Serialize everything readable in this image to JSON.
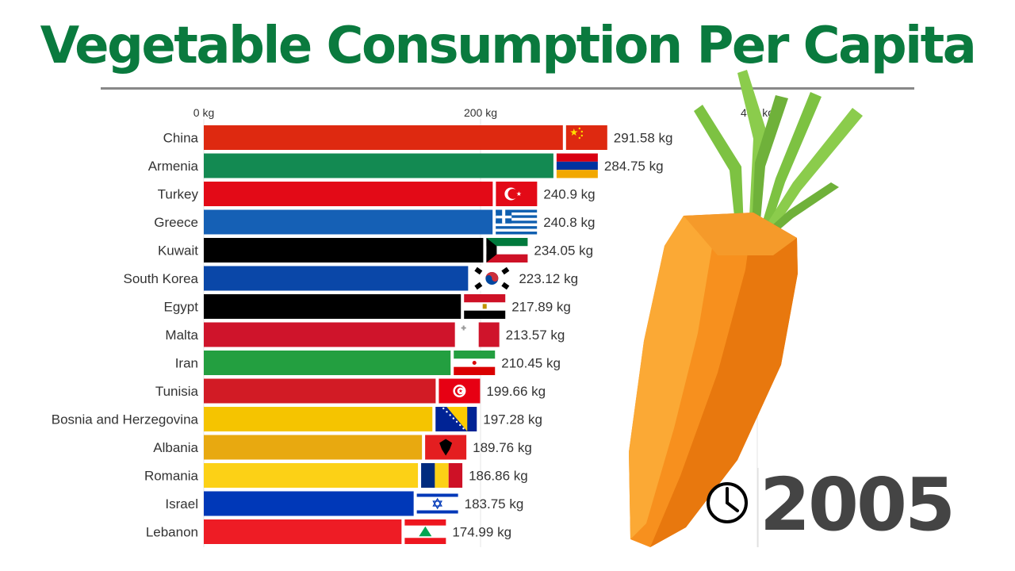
{
  "header": {
    "title": "Vegetable Consumption Per Capita"
  },
  "year_indicator": {
    "icon": "clock-icon",
    "year": "2005"
  },
  "decoration": {
    "image": "carrot-illustration"
  },
  "chart_data": {
    "type": "bar",
    "orientation": "horizontal",
    "title": "Vegetable Consumption Per Capita",
    "subtitle": "2005",
    "xlabel": "",
    "ylabel": "",
    "unit": "kg",
    "xlim": [
      0,
      400
    ],
    "x_ticks": [
      0,
      200,
      400
    ],
    "x_tick_labels": [
      "0 kg",
      "200 kg",
      "400 kg"
    ],
    "grid": true,
    "legend": "none",
    "categories": [
      "China",
      "Armenia",
      "Turkey",
      "Greece",
      "Kuwait",
      "South Korea",
      "Egypt",
      "Malta",
      "Iran",
      "Tunisia",
      "Bosnia and Herzegovina",
      "Albania",
      "Romania",
      "Israel",
      "Lebanon"
    ],
    "values": [
      291.58,
      284.75,
      240.9,
      240.8,
      234.05,
      223.12,
      217.89,
      213.57,
      210.45,
      199.66,
      197.28,
      189.76,
      186.86,
      183.75,
      174.99
    ],
    "value_labels": [
      "291.58 kg",
      "284.75 kg",
      "240.9 kg",
      "240.8 kg",
      "234.05 kg",
      "223.12 kg",
      "217.89 kg",
      "213.57 kg",
      "210.45 kg",
      "199.66 kg",
      "197.28 kg",
      "189.76 kg",
      "186.86 kg",
      "183.75 kg",
      "174.99 kg"
    ],
    "colors": [
      "#de2910",
      "#138a52",
      "#e30a17",
      "#1560b5",
      "#000000",
      "#0a47a8",
      "#000000",
      "#cf142b",
      "#239f40",
      "#d21b25",
      "#f5c400",
      "#e8a910",
      "#fcd116",
      "#0038b8",
      "#ee1c25"
    ],
    "flags": [
      "china",
      "armenia",
      "turkey",
      "greece",
      "kuwait",
      "south-korea",
      "egypt",
      "malta",
      "iran",
      "tunisia",
      "bosnia",
      "albania",
      "romania",
      "israel",
      "lebanon"
    ]
  }
}
